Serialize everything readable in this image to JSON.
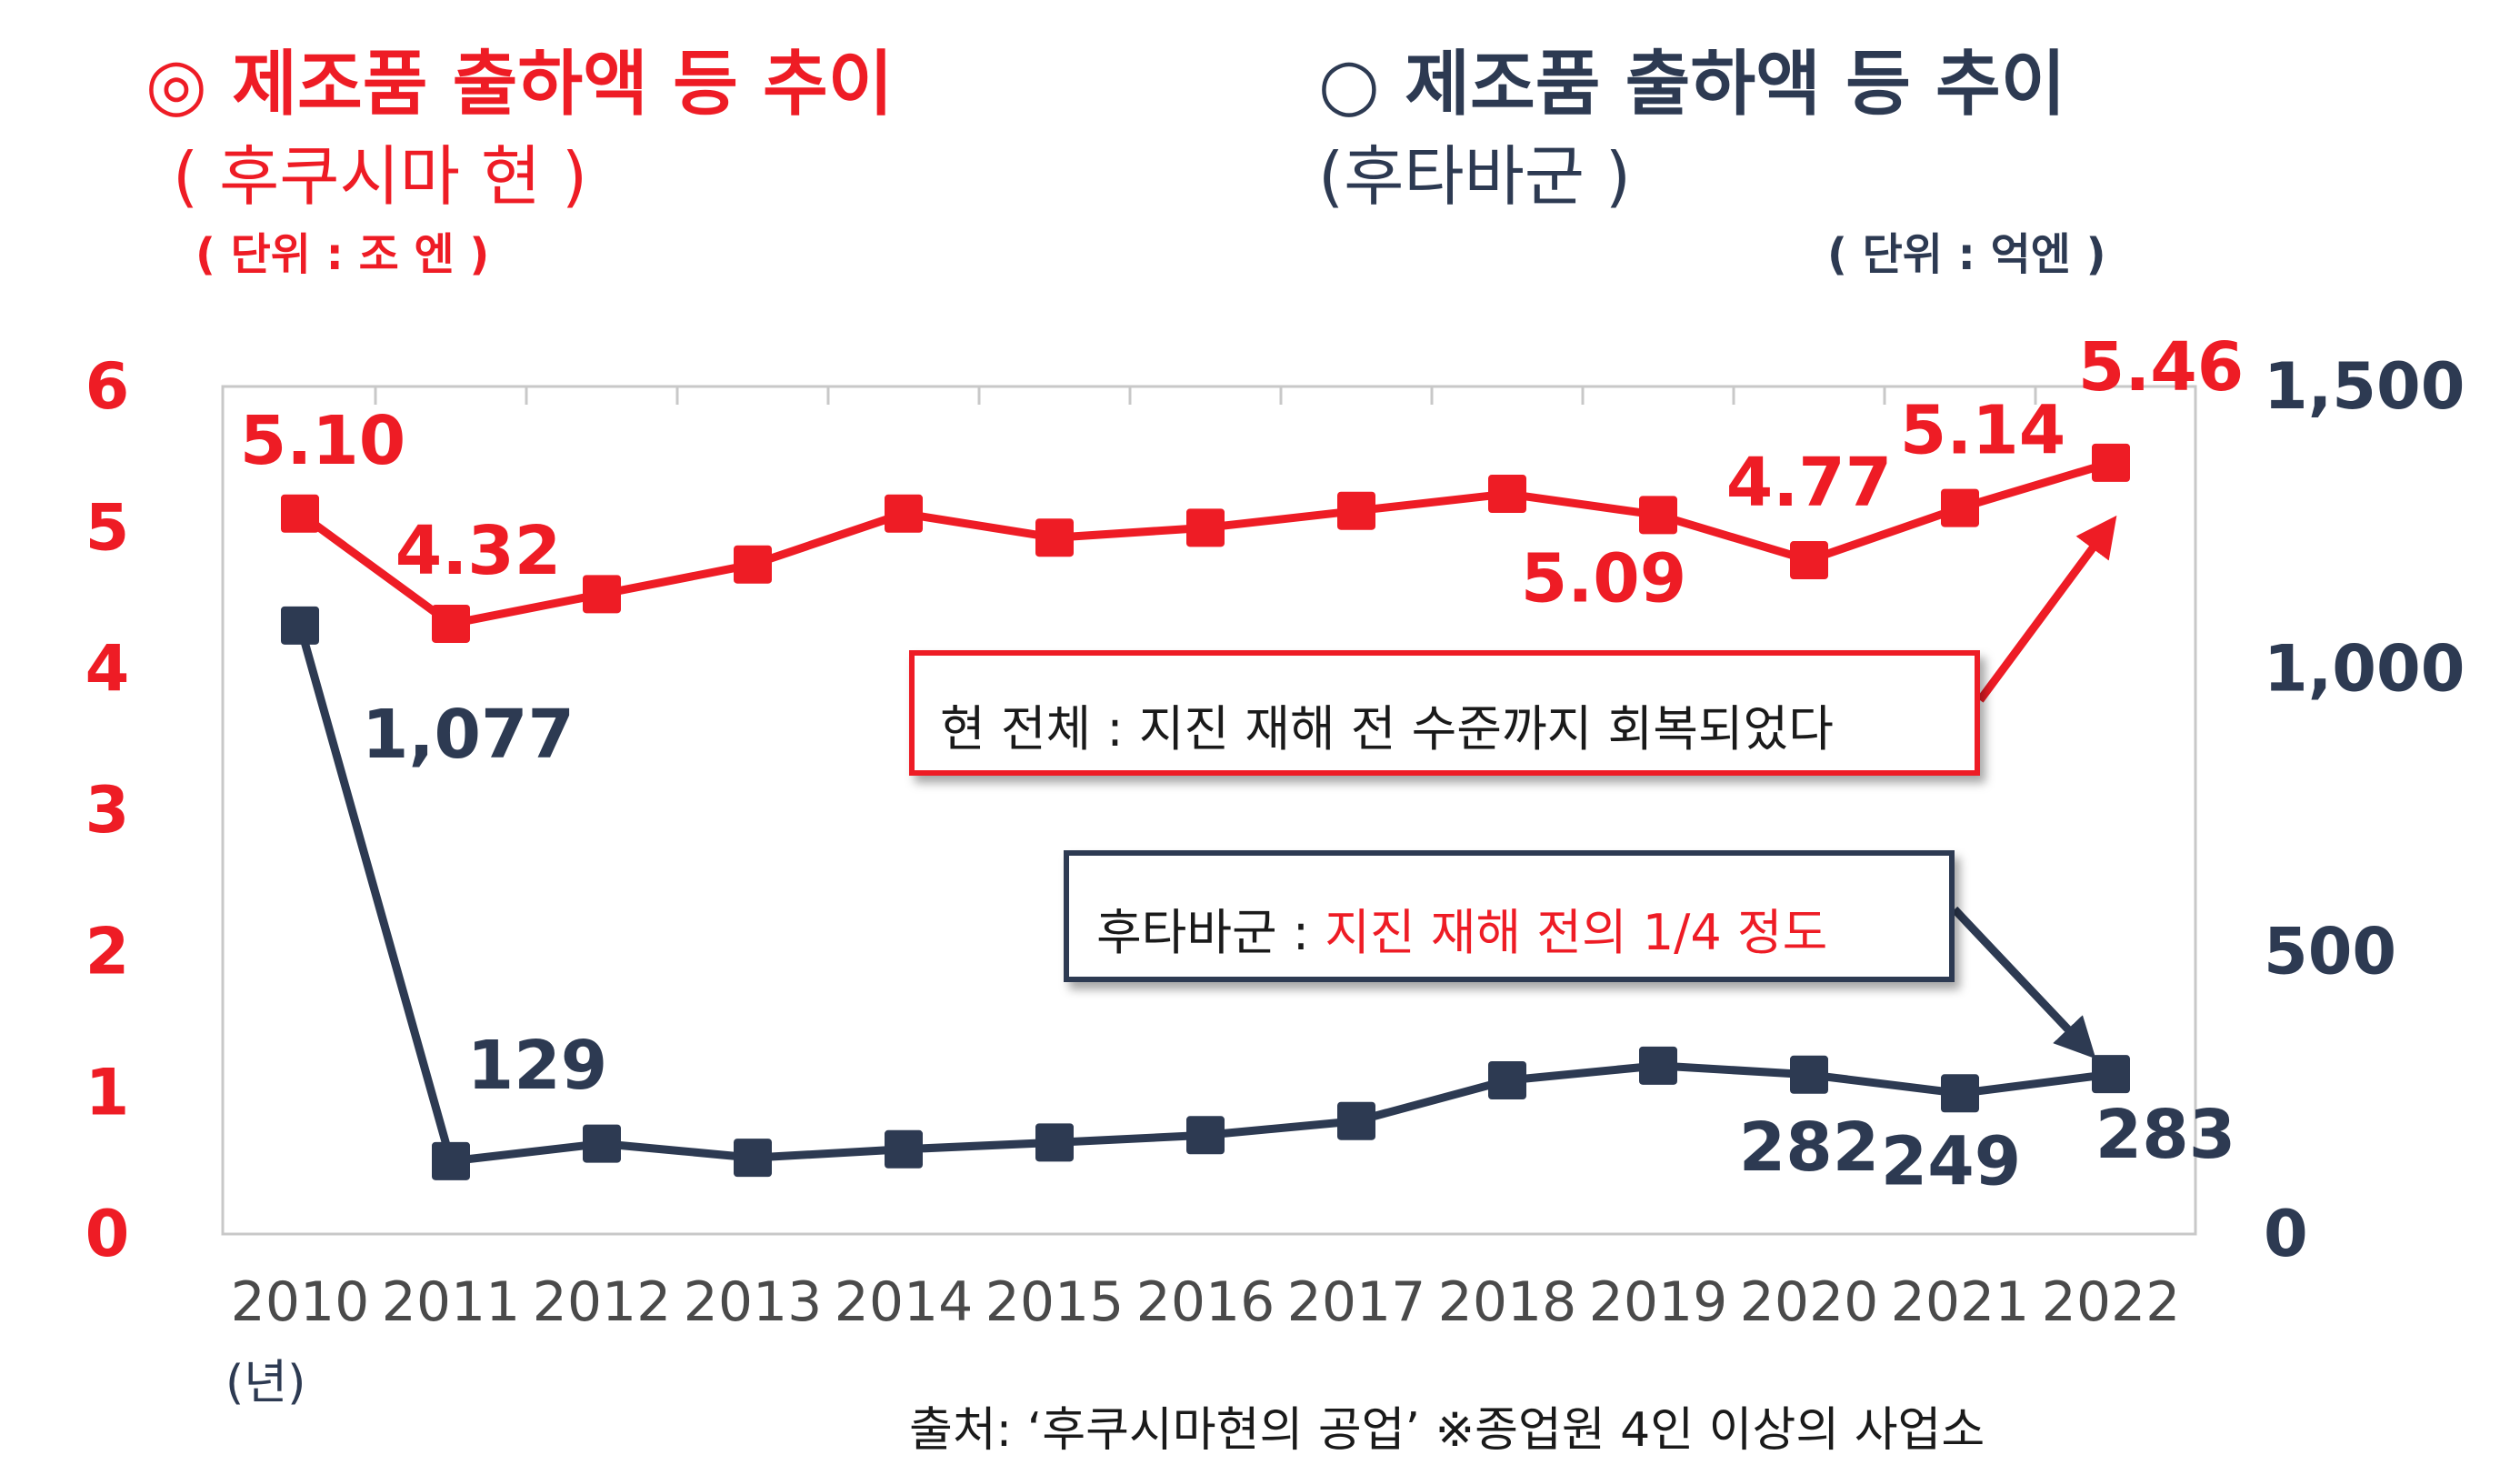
{
  "header_left": {
    "bullet": "◎",
    "title": "제조품 출하액 등 추이",
    "subtitle": "( 후쿠시마 현 )",
    "unit": "( 단위 : 조 엔 )"
  },
  "header_right": {
    "bullet": "○",
    "title": "제조품 출하액 등 추이",
    "subtitle": "(후타바군 )",
    "unit": "( 단위 : 억엔 )"
  },
  "year_unit": "(년)",
  "source": "출처: ‘후쿠시마현의 공업’    ※종업원 4인 이상의 사업소",
  "callouts": {
    "prefecture": "현 전체 : 지진 재해 전 수준까지 회복되었다",
    "futaba_prefix": "후타바군 : ",
    "futaba_highlight": "지진 재해 전의 1/4 정도"
  },
  "colors": {
    "prefecture": "#ee1c25",
    "futaba": "#2d3a52",
    "grid": "#c8c8c8"
  },
  "chart_data": {
    "type": "line",
    "x": [
      "2010",
      "2011",
      "2012",
      "2013",
      "2014",
      "2015",
      "2016",
      "2017",
      "2018",
      "2019",
      "2020",
      "2021",
      "2022"
    ],
    "y_left": {
      "lim": [
        0,
        6
      ],
      "ticks": [
        "0",
        "1",
        "2",
        "3",
        "4",
        "5",
        "6"
      ]
    },
    "y_right": {
      "lim": [
        0,
        1500
      ],
      "ticks": [
        "0",
        "500",
        "1,000",
        "1,500"
      ]
    },
    "grid": "vertical",
    "series": [
      {
        "axis": "left",
        "values": [
          5.1,
          4.32,
          4.53,
          4.74,
          5.1,
          4.93,
          5.0,
          5.12,
          5.24,
          5.09,
          4.77,
          5.14,
          5.46
        ],
        "labels": [
          {
            "i": 0,
            "text": "5.10"
          },
          {
            "i": 1,
            "text": "4.32"
          },
          {
            "i": 9,
            "text": "5.09"
          },
          {
            "i": 10,
            "text": "4.77"
          },
          {
            "i": 11,
            "text": "5.14"
          },
          {
            "i": 12,
            "text": "5.46"
          }
        ]
      },
      {
        "axis": "right",
        "values": [
          1077,
          129,
          160,
          135,
          150,
          162,
          175,
          200,
          272,
          298,
          282,
          249,
          283
        ],
        "labels": [
          {
            "i": 0,
            "text": "1,077"
          },
          {
            "i": 1,
            "text": "129"
          },
          {
            "i": 10,
            "text": "282"
          },
          {
            "i": 11,
            "text": "249"
          },
          {
            "i": 12,
            "text": "283"
          }
        ]
      }
    ]
  }
}
